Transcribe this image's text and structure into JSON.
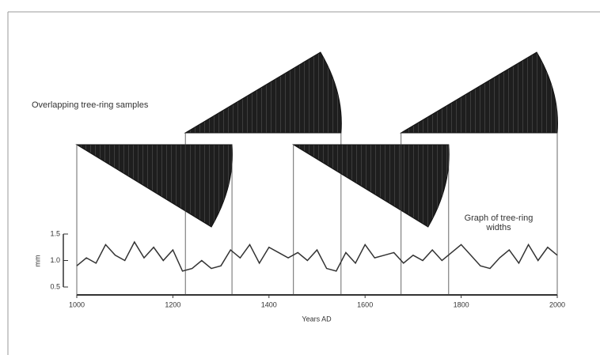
{
  "chart_data": {
    "type": "line",
    "annotations": [
      "Overlapping tree-ring samples",
      "Graph of tree-ring widths"
    ],
    "xlabel": "Years AD",
    "ylabel": "mm",
    "x": [
      1000,
      1020,
      1040,
      1060,
      1080,
      1100,
      1120,
      1140,
      1160,
      1180,
      1200,
      1220,
      1240,
      1260,
      1280,
      1300,
      1320,
      1340,
      1360,
      1380,
      1400,
      1420,
      1440,
      1460,
      1480,
      1500,
      1520,
      1540,
      1560,
      1580,
      1600,
      1620,
      1640,
      1660,
      1680,
      1700,
      1720,
      1740,
      1760,
      1780,
      1800,
      1820,
      1840,
      1860,
      1880,
      1900,
      1920,
      1940,
      1960,
      1980,
      2000
    ],
    "values": [
      0.9,
      1.05,
      0.95,
      1.3,
      1.1,
      1.0,
      1.35,
      1.05,
      1.25,
      1.0,
      1.2,
      0.8,
      0.85,
      1.0,
      0.85,
      0.9,
      1.2,
      1.05,
      1.3,
      0.95,
      1.25,
      1.15,
      1.05,
      1.15,
      1.0,
      1.2,
      0.85,
      0.8,
      1.15,
      0.95,
      1.3,
      1.05,
      1.1,
      1.15,
      0.95,
      1.1,
      1.0,
      1.2,
      1.0,
      1.15,
      1.3,
      1.1,
      0.9,
      0.85,
      1.05,
      1.2,
      0.95,
      1.3,
      1.0,
      1.25,
      1.1
    ],
    "color": "#333333",
    "samples": [
      {
        "start": 1000,
        "end": 1323
      },
      {
        "start": 1226,
        "end": 1550
      },
      {
        "start": 1451,
        "end": 1774
      },
      {
        "start": 1675,
        "end": 2000
      }
    ],
    "xlim": [
      1000,
      2000
    ],
    "xticks": [
      1000,
      1200,
      1400,
      1600,
      1800,
      2000
    ],
    "ylim": [
      0.5,
      1.5
    ],
    "yticks": [
      0.5,
      {
        "value": 1,
        "label": "1.0"
      },
      1.5
    ]
  }
}
